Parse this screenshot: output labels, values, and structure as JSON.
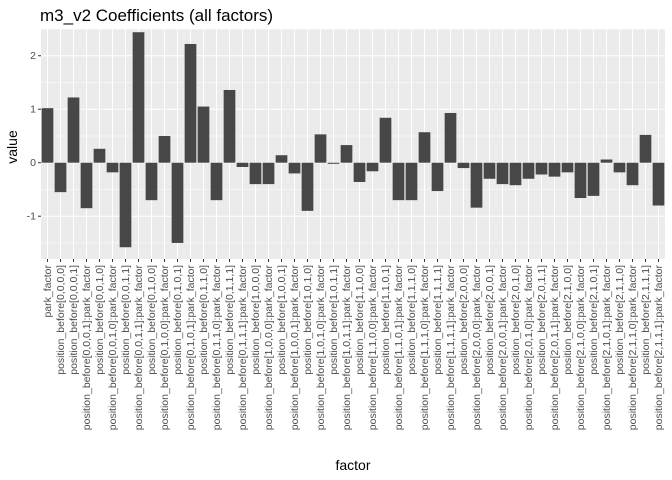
{
  "chart_data": {
    "type": "bar",
    "title": "m3_v2 Coefficients (all factors)",
    "xlabel": "factor",
    "ylabel": "value",
    "ylim": [
      -1.8,
      2.5
    ],
    "yticks": [
      -1,
      0,
      1,
      2
    ],
    "grid": true,
    "bar_color": "#474747",
    "panel_color": "#ebebeb",
    "gridline_color": "#ffffff",
    "categories": [
      "park_factor",
      "position_before[0,0,0,0]",
      "position_before[0,0,0,1]",
      "position_before[0,0,0,1]:park_factor",
      "position_before[0,0,1,0]",
      "position_before[0,0,1,0]:park_factor",
      "position_before[0,0,1,1]",
      "position_before[0,0,1,1]:park_factor",
      "position_before[0,1,0,0]",
      "position_before[0,1,0,0]:park_factor",
      "position_before[0,1,0,1]",
      "position_before[0,1,0,1]:park_factor",
      "position_before[0,1,1,0]",
      "position_before[0,1,1,0]:park_factor",
      "position_before[0,1,1,1]",
      "position_before[0,1,1,1]:park_factor",
      "position_before[1,0,0,0]",
      "position_before[1,0,0,0]:park_factor",
      "position_before[1,0,0,1]",
      "position_before[1,0,0,1]:park_factor",
      "position_before[1,0,1,0]",
      "position_before[1,0,1,0]:park_factor",
      "position_before[1,0,1,1]",
      "position_before[1,0,1,1]:park_factor",
      "position_before[1,1,0,0]",
      "position_before[1,1,0,0]:park_factor",
      "position_before[1,1,0,1]",
      "position_before[1,1,0,1]:park_factor",
      "position_before[1,1,1,0]",
      "position_before[1,1,1,0]:park_factor",
      "position_before[1,1,1,1]",
      "position_before[1,1,1,1]:park_factor",
      "position_before[2,0,0,0]",
      "position_before[2,0,0,0]:park_factor",
      "position_before[2,0,0,1]",
      "position_before[2,0,0,1]:park_factor",
      "position_before[2,0,1,0]",
      "position_before[2,0,1,0]:park_factor",
      "position_before[2,0,1,1]",
      "position_before[2,0,1,1]:park_factor",
      "position_before[2,1,0,0]",
      "position_before[2,1,0,0]:park_factor",
      "position_before[2,1,0,1]",
      "position_before[2,1,0,1]:park_factor",
      "position_before[2,1,1,0]",
      "position_before[2,1,1,0]:park_factor",
      "position_before[2,1,1,1]",
      "position_before[2,1,1,1]:park_factor"
    ],
    "values": [
      1.02,
      -0.55,
      1.22,
      -0.85,
      0.26,
      -0.18,
      -1.58,
      2.44,
      -0.7,
      0.5,
      -1.5,
      2.22,
      1.05,
      -0.7,
      1.36,
      -0.08,
      -0.4,
      -0.4,
      0.14,
      -0.2,
      -0.9,
      0.53,
      -0.02,
      0.33,
      -0.36,
      -0.16,
      0.84,
      -0.7,
      -0.7,
      0.57,
      -0.53,
      0.93,
      -0.1,
      -0.84,
      -0.3,
      -0.4,
      -0.42,
      -0.3,
      -0.22,
      -0.26,
      -0.18,
      -0.66,
      -0.62,
      0.06,
      -0.18,
      -0.42,
      0.52,
      -0.8
    ]
  }
}
